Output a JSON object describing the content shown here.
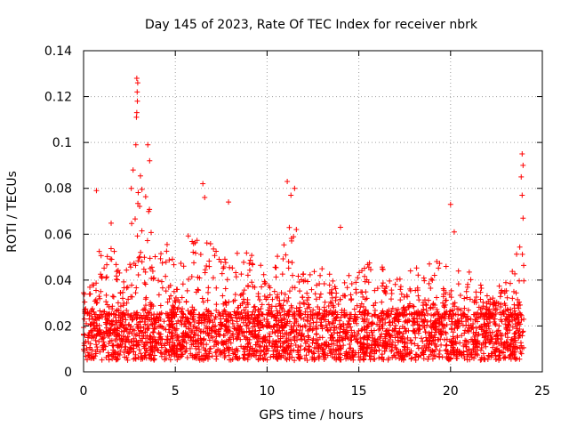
{
  "chart_data": {
    "type": "scatter",
    "title": "Day 145 of 2023, Rate Of TEC Index for receiver nbrk",
    "xlabel": "GPS time / hours",
    "ylabel": "ROTI / TECUs",
    "xlim": [
      0,
      25
    ],
    "ylim": [
      0,
      0.14
    ],
    "x_ticks": [
      "0",
      "5",
      "10",
      "15",
      "20",
      "25"
    ],
    "y_ticks": [
      "0",
      "0.02",
      "0.04",
      "0.06",
      "0.08",
      "0.1",
      "0.12",
      "0.14"
    ],
    "grid": true,
    "legend": "none",
    "marker": "+",
    "series_color": "#ff0000",
    "x_extent": [
      0,
      24
    ],
    "baseline_band": [
      0.005,
      0.025
    ],
    "envelope": [
      [
        0.0,
        0.035
      ],
      [
        0.5,
        0.04
      ],
      [
        0.7,
        0.053
      ],
      [
        1.0,
        0.06
      ],
      [
        1.5,
        0.065
      ],
      [
        2.0,
        0.045
      ],
      [
        2.5,
        0.06
      ],
      [
        3.0,
        0.1
      ],
      [
        3.5,
        0.075
      ],
      [
        4.0,
        0.055
      ],
      [
        4.5,
        0.06
      ],
      [
        5.0,
        0.045
      ],
      [
        5.5,
        0.06
      ],
      [
        6.0,
        0.06
      ],
      [
        6.5,
        0.065
      ],
      [
        7.0,
        0.055
      ],
      [
        8.0,
        0.05
      ],
      [
        9.0,
        0.055
      ],
      [
        10.0,
        0.045
      ],
      [
        10.5,
        0.05
      ],
      [
        11.0,
        0.07
      ],
      [
        11.5,
        0.065
      ],
      [
        12.0,
        0.05
      ],
      [
        13.0,
        0.045
      ],
      [
        14.0,
        0.04
      ],
      [
        15.0,
        0.045
      ],
      [
        16.0,
        0.05
      ],
      [
        17.0,
        0.04
      ],
      [
        18.0,
        0.045
      ],
      [
        19.0,
        0.05
      ],
      [
        20.0,
        0.045
      ],
      [
        21.0,
        0.045
      ],
      [
        22.0,
        0.035
      ],
      [
        23.0,
        0.04
      ],
      [
        23.5,
        0.05
      ],
      [
        24.0,
        0.06
      ]
    ],
    "peaks": [
      {
        "x": 0.7,
        "y": 0.079
      },
      {
        "x": 2.9,
        "y": 0.128
      },
      {
        "x": 2.95,
        "y": 0.126
      },
      {
        "x": 2.92,
        "y": 0.122
      },
      {
        "x": 2.93,
        "y": 0.118
      },
      {
        "x": 2.9,
        "y": 0.113
      },
      {
        "x": 2.88,
        "y": 0.111
      },
      {
        "x": 2.85,
        "y": 0.099
      },
      {
        "x": 3.5,
        "y": 0.099
      },
      {
        "x": 3.6,
        "y": 0.092
      },
      {
        "x": 2.7,
        "y": 0.088
      },
      {
        "x": 2.6,
        "y": 0.08
      },
      {
        "x": 6.5,
        "y": 0.082
      },
      {
        "x": 6.6,
        "y": 0.076
      },
      {
        "x": 7.9,
        "y": 0.074
      },
      {
        "x": 11.1,
        "y": 0.083
      },
      {
        "x": 11.5,
        "y": 0.08
      },
      {
        "x": 11.3,
        "y": 0.077
      },
      {
        "x": 14.0,
        "y": 0.063
      },
      {
        "x": 20.0,
        "y": 0.073
      },
      {
        "x": 20.2,
        "y": 0.061
      },
      {
        "x": 23.9,
        "y": 0.095
      },
      {
        "x": 23.95,
        "y": 0.09
      },
      {
        "x": 23.85,
        "y": 0.085
      },
      {
        "x": 23.9,
        "y": 0.077
      },
      {
        "x": 23.95,
        "y": 0.067
      }
    ]
  }
}
